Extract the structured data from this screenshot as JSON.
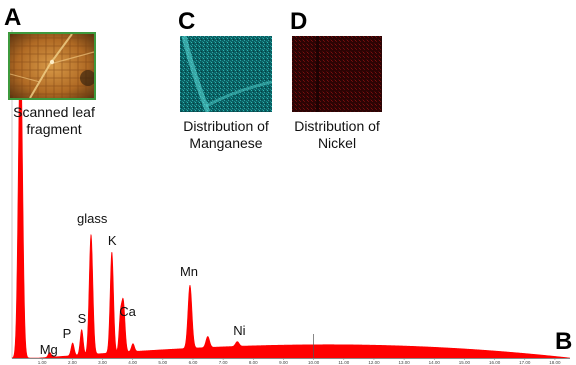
{
  "panels": {
    "a": {
      "letter": "A",
      "caption_line1": "Scanned leaf",
      "caption_line2": "fragment"
    },
    "b": {
      "letter": "B"
    },
    "c": {
      "letter": "C",
      "caption_line1": "Distribution of",
      "caption_line2": "Manganese"
    },
    "d": {
      "letter": "D",
      "caption_line1": "Distribution of",
      "caption_line2": "Nickel"
    }
  },
  "colors": {
    "spectrum_fill": "#ff0000",
    "axis": "#888888",
    "leaf_border": "#3e9a3e",
    "mn_map": "#0b6b6b",
    "ni_map": "#3a0606"
  },
  "chart_data": {
    "type": "area",
    "title": "",
    "xlabel": "",
    "ylabel": "",
    "xlim": [
      0,
      18.5
    ],
    "ylim": [
      0,
      100
    ],
    "x_ticks": [
      "1.00",
      "2.00",
      "3.00",
      "4.00",
      "5.00",
      "6.00",
      "7.00",
      "8.00",
      "9.00",
      "10.00",
      "11.00",
      "12.00",
      "13.00",
      "14.00",
      "15.00",
      "16.00",
      "17.00",
      "18.00"
    ],
    "peaks": [
      {
        "label": "",
        "x": 0.28,
        "y": 100,
        "width": 0.07
      },
      {
        "label": "Mg",
        "x": 1.25,
        "y": 1.5,
        "width": 0.05
      },
      {
        "label": "P",
        "x": 2.01,
        "y": 4,
        "width": 0.05
      },
      {
        "label": "S",
        "x": 2.31,
        "y": 8,
        "width": 0.05
      },
      {
        "label": "glass",
        "x": 2.62,
        "y": 38,
        "width": 0.06
      },
      {
        "label": "K",
        "x": 3.31,
        "y": 32,
        "width": 0.055
      },
      {
        "label": "",
        "x": 3.59,
        "y": 10,
        "width": 0.045
      },
      {
        "label": "Ca",
        "x": 3.69,
        "y": 16,
        "width": 0.055
      },
      {
        "label": "",
        "x": 4.01,
        "y": 2.5,
        "width": 0.05
      },
      {
        "label": "Mn",
        "x": 5.9,
        "y": 20,
        "width": 0.065
      },
      {
        "label": "",
        "x": 6.49,
        "y": 3.5,
        "width": 0.06
      },
      {
        "label": "Ni",
        "x": 7.47,
        "y": 1.5,
        "width": 0.06
      }
    ],
    "background": {
      "x_peak": 10.5,
      "y_peak": 4.2
    }
  }
}
